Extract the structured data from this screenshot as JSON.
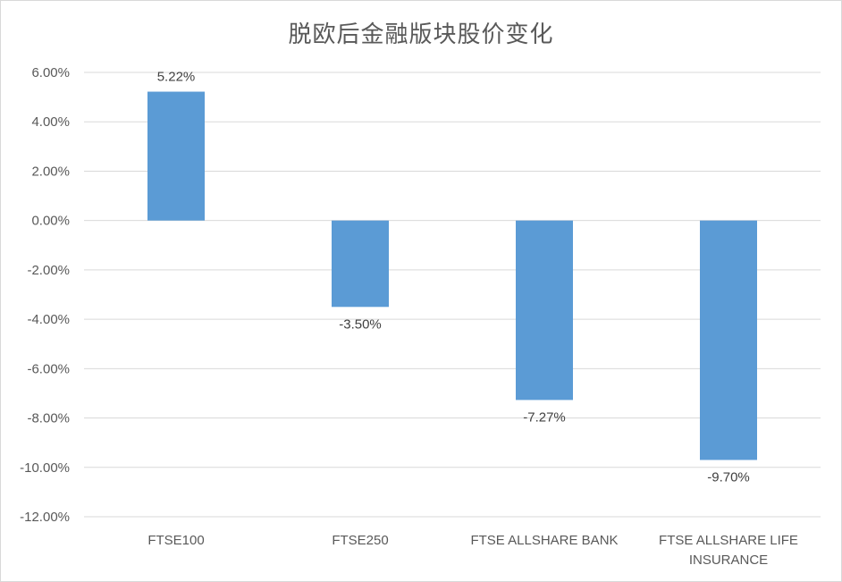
{
  "chart_data": {
    "type": "bar",
    "title": "脱欧后金融版块股价变化",
    "categories": [
      "FTSE100",
      "FTSE250",
      "FTSE ALLSHARE BANK",
      "FTSE ALLSHARE LIFE INSURANCE"
    ],
    "category_lines": [
      [
        "FTSE100"
      ],
      [
        "FTSE250"
      ],
      [
        "FTSE ALLSHARE BANK"
      ],
      [
        "FTSE ALLSHARE LIFE",
        "INSURANCE"
      ]
    ],
    "values": [
      5.22,
      -3.5,
      -7.27,
      -9.7
    ],
    "data_labels": [
      "5.22%",
      "-3.50%",
      "-7.27%",
      "-9.70%"
    ],
    "y_ticks": [
      "6.00%",
      "4.00%",
      "2.00%",
      "0.00%",
      "-2.00%",
      "-4.00%",
      "-6.00%",
      "-8.00%",
      "-10.00%",
      "-12.00%"
    ],
    "ylim": [
      -12,
      6
    ],
    "xlabel": "",
    "ylabel": "",
    "grid": true,
    "bar_color": "#5b9bd5"
  }
}
